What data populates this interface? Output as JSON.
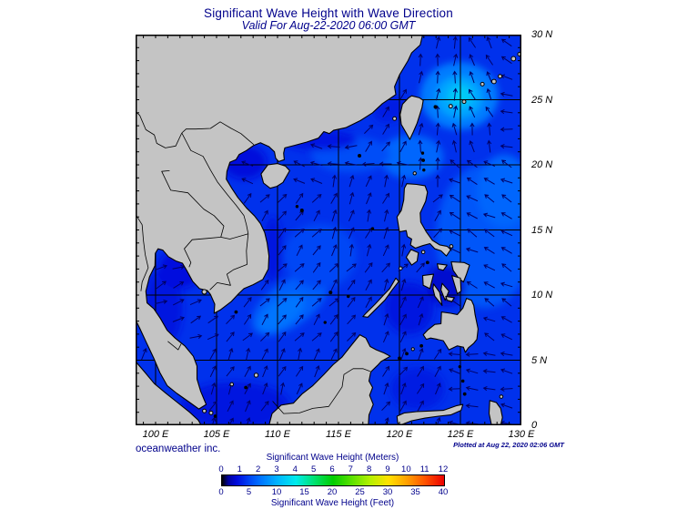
{
  "header": {
    "title": "Significant Wave Height with Wave Direction",
    "subtitle": "Valid For Aug-22-2020 06:00 GMT"
  },
  "footer": {
    "credit": "oceanweather inc.",
    "plotted_at": "Plotted at Aug 22, 2020 02:06 GMT"
  },
  "chart_data": {
    "type": "heatmap",
    "title": "Significant Wave Height with Wave Direction",
    "valid_time": "Aug-22-2020 06:00 GMT",
    "plotted_time": "Aug 22, 2020 02:06 GMT",
    "region": "South China Sea / Philippine Sea",
    "lon_range_deg_e": [
      98.36,
      130
    ],
    "lat_range_deg_n": [
      0,
      30
    ],
    "grid_interval_deg": 5,
    "minor_tick_interval_deg": 1,
    "lon_ticks": [
      {
        "deg": 100,
        "label": "100 E"
      },
      {
        "deg": 105,
        "label": "105 E"
      },
      {
        "deg": 110,
        "label": "110 E"
      },
      {
        "deg": 115,
        "label": "115 E"
      },
      {
        "deg": 120,
        "label": "120 E"
      },
      {
        "deg": 125,
        "label": "125 E"
      },
      {
        "deg": 130,
        "label": "130 E"
      }
    ],
    "lat_ticks": [
      {
        "deg": 30,
        "label": "30 N"
      },
      {
        "deg": 25,
        "label": "25 N"
      },
      {
        "deg": 20,
        "label": "20 N"
      },
      {
        "deg": 15,
        "label": "15 N"
      },
      {
        "deg": 10,
        "label": "10 N"
      },
      {
        "deg": 5,
        "label": "5 N"
      },
      {
        "deg": 0,
        "label": "0"
      }
    ],
    "colorbar_meters": {
      "title": "Significant Wave Height (Meters)",
      "ticks": [
        0,
        1,
        2,
        3,
        4,
        5,
        6,
        7,
        8,
        9,
        10,
        11,
        12
      ]
    },
    "colorbar_feet": {
      "title": "Significant Wave Height (Feet)",
      "ticks": [
        0,
        5,
        10,
        15,
        20,
        25,
        30,
        35,
        40
      ]
    },
    "colormap_stops_m_rgb": [
      [
        0,
        [
          0,
          0,
          0
        ]
      ],
      [
        0.35,
        [
          0,
          0,
          160
        ]
      ],
      [
        0.8,
        [
          0,
          10,
          220
        ]
      ],
      [
        1.5,
        [
          0,
          70,
          245
        ]
      ],
      [
        2,
        [
          0,
          110,
          255
        ]
      ],
      [
        3,
        [
          0,
          180,
          255
        ]
      ],
      [
        4,
        [
          0,
          235,
          235
        ]
      ],
      [
        5,
        [
          0,
          225,
          110
        ]
      ],
      [
        6,
        [
          0,
          205,
          0
        ]
      ],
      [
        7,
        [
          90,
          225,
          0
        ]
      ],
      [
        8,
        [
          180,
          240,
          0
        ]
      ],
      [
        9,
        [
          255,
          225,
          0
        ]
      ],
      [
        10,
        [
          255,
          160,
          0
        ]
      ],
      [
        11,
        [
          255,
          80,
          0
        ]
      ],
      [
        12,
        [
          235,
          0,
          0
        ]
      ]
    ],
    "background_hs_m": 1.25,
    "wave_field_patches": [
      {
        "c": [
          124.9,
          25.3
        ],
        "r": [
          3.2,
          2.6
        ],
        "rot": 0,
        "hs_m": 2.2
      },
      {
        "c": [
          124.9,
          25.2
        ],
        "r": [
          1.9,
          1.6
        ],
        "rot": 0,
        "hs_m": 2.8
      },
      {
        "c": [
          125.0,
          25.3
        ],
        "r": [
          1.0,
          0.8
        ],
        "rot": 0,
        "hs_m": 3.4
      },
      {
        "c": [
          121.0,
          20.6
        ],
        "r": [
          2.6,
          1.7
        ],
        "rot": 0,
        "hs_m": 1.9
      },
      {
        "c": [
          116.0,
          20.8
        ],
        "r": [
          3.2,
          1.4
        ],
        "rot": 0,
        "hs_m": 1.6
      },
      {
        "c": [
          127.0,
          14.5
        ],
        "r": [
          4.0,
          5.5
        ],
        "rot": 0,
        "hs_m": 1.7
      },
      {
        "c": [
          128.6,
          18.0
        ],
        "r": [
          2.2,
          2.8
        ],
        "rot": 0,
        "hs_m": 1.9
      },
      {
        "c": [
          111.0,
          9.3
        ],
        "r": [
          3.6,
          1.7
        ],
        "rot": -35,
        "hs_m": 1.8
      },
      {
        "c": [
          110.3,
          8.6
        ],
        "r": [
          2.2,
          1.0
        ],
        "rot": -35,
        "hs_m": 2.1
      },
      {
        "c": [
          113.5,
          13.0
        ],
        "r": [
          3.0,
          2.5
        ],
        "rot": 0,
        "hs_m": 1.5
      },
      {
        "c": [
          107.3,
          20.2
        ],
        "r": [
          1.8,
          1.3
        ],
        "rot": 0,
        "hs_m": 0.8
      },
      {
        "c": [
          100.6,
          9.0
        ],
        "r": [
          1.6,
          3.0
        ],
        "rot": 0,
        "hs_m": 0.9
      },
      {
        "c": [
          102.0,
          12.0
        ],
        "r": [
          1.8,
          1.5
        ],
        "rot": 0,
        "hs_m": 0.85
      },
      {
        "c": [
          106.5,
          1.5
        ],
        "r": [
          4.5,
          1.8
        ],
        "rot": 0,
        "hs_m": 0.9
      },
      {
        "c": [
          120.8,
          9.0
        ],
        "r": [
          2.0,
          2.0
        ],
        "rot": 0,
        "hs_m": 0.9
      },
      {
        "c": [
          123.8,
          10.8
        ],
        "r": [
          1.6,
          1.6
        ],
        "rot": 0,
        "hs_m": 0.7
      },
      {
        "c": [
          121.5,
          2.8
        ],
        "r": [
          2.2,
          1.6
        ],
        "rot": 0,
        "hs_m": 1.0
      },
      {
        "c": [
          119.3,
          24.3
        ],
        "r": [
          1.5,
          1.0
        ],
        "rot": -20,
        "hs_m": 1.0
      },
      {
        "c": [
          113.5,
          21.9
        ],
        "r": [
          3.0,
          0.8
        ],
        "rot": 0,
        "hs_m": 0.95
      },
      {
        "c": [
          109.6,
          13.5
        ],
        "r": [
          0.8,
          2.5
        ],
        "rot": 0,
        "hs_m": 0.9
      }
    ],
    "wave_direction_zones": [
      {
        "lon": [
          124,
          130.5
        ],
        "lat": [
          -1,
          5.5
        ],
        "toward_deg": 280
      },
      {
        "lon": [
          117,
          124
        ],
        "lat": [
          -1,
          6
        ],
        "toward_deg": 30
      },
      {
        "lon": [
          117,
          123.5
        ],
        "lat": [
          6,
          11.5
        ],
        "toward_deg": 25
      },
      {
        "lon": [
          123.5,
          130.5
        ],
        "lat": [
          5,
          15
        ],
        "toward_deg": 300
      },
      {
        "lon": [
          124,
          130.5
        ],
        "lat": [
          15,
          21
        ],
        "toward_deg": 300
      },
      {
        "lon": [
          121,
          124
        ],
        "lat": [
          17.5,
          23
        ],
        "toward_deg": 5
      },
      {
        "lon": [
          121,
          125.5
        ],
        "lat": [
          23,
          30.5
        ],
        "toward_deg": 5
      },
      {
        "lon": [
          125.5,
          127.5
        ],
        "lat": [
          23,
          30.5
        ],
        "toward_deg": 335
      },
      {
        "lon": [
          127.5,
          130.5
        ],
        "lat": [
          25.5,
          30.5
        ],
        "toward_deg": 300
      },
      {
        "lon": [
          127.5,
          130.5
        ],
        "lat": [
          21,
          25.5
        ],
        "toward_deg": 275
      },
      {
        "lon": [
          124,
          127.5
        ],
        "lat": [
          21,
          23
        ],
        "toward_deg": 350
      },
      {
        "lon": [
          117,
          121
        ],
        "lat": [
          21,
          27
        ],
        "toward_deg": 35
      },
      {
        "lon": [
          105,
          114
        ],
        "lat": [
          17.5,
          22.5
        ],
        "toward_deg": 290
      },
      {
        "lon": [
          114,
          121
        ],
        "lat": [
          19.5,
          23
        ],
        "toward_deg": 270
      },
      {
        "lon": [
          114,
          121
        ],
        "lat": [
          13,
          19.5
        ],
        "toward_deg": 20
      },
      {
        "lon": [
          96,
          105.5
        ],
        "lat": [
          5.5,
          14
        ],
        "toward_deg": 65
      },
      {
        "lon": [
          96,
          118
        ],
        "lat": [
          -1,
          5.5
        ],
        "toward_deg": 25
      }
    ],
    "default_direction_toward_deg": 40,
    "land_color": "#c4c4c4",
    "arrow_color": "#000066",
    "accent_text_color": "#00008b",
    "max_hs_region": {
      "where": "northeast of Taiwan",
      "hs_m": 3.4
    }
  }
}
